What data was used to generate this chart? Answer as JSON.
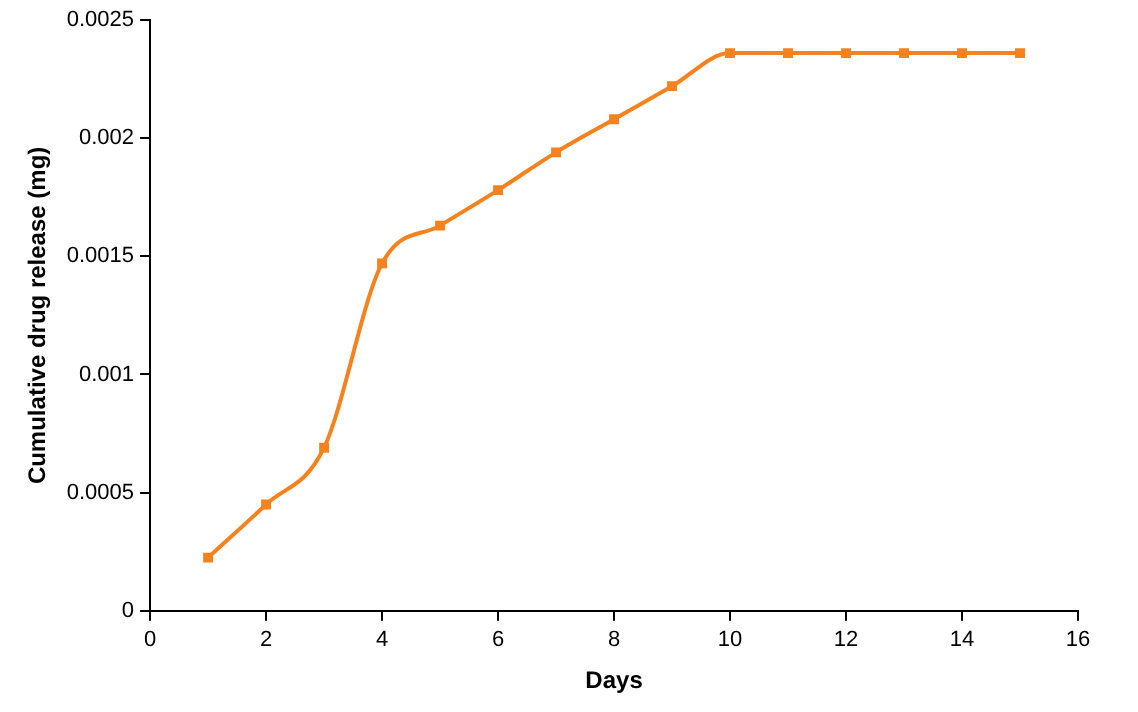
{
  "chart_data": {
    "type": "line",
    "xlabel": "Days",
    "ylabel": "Cumulative drug release (mg)",
    "x": [
      1,
      2,
      3,
      4,
      5,
      6,
      7,
      8,
      9,
      10,
      11,
      12,
      13,
      14,
      15
    ],
    "series": [
      {
        "color": "#f5821f",
        "values": [
          0.000225,
          0.00045,
          0.00069,
          0.00147,
          0.00163,
          0.00178,
          0.00194,
          0.00208,
          0.00222,
          0.00236,
          0.00236,
          0.00236,
          0.00236,
          0.00236,
          0.00236
        ]
      }
    ],
    "xlim": [
      0,
      16
    ],
    "xticks": [
      0,
      2,
      4,
      6,
      8,
      10,
      12,
      14,
      16
    ],
    "ylim": [
      0,
      0.0025
    ],
    "yticks": [
      0,
      0.0005,
      0.001,
      0.0015,
      0.002,
      0.0025
    ],
    "grid": false,
    "legend": false,
    "marker": "square",
    "line_style": "solid"
  }
}
